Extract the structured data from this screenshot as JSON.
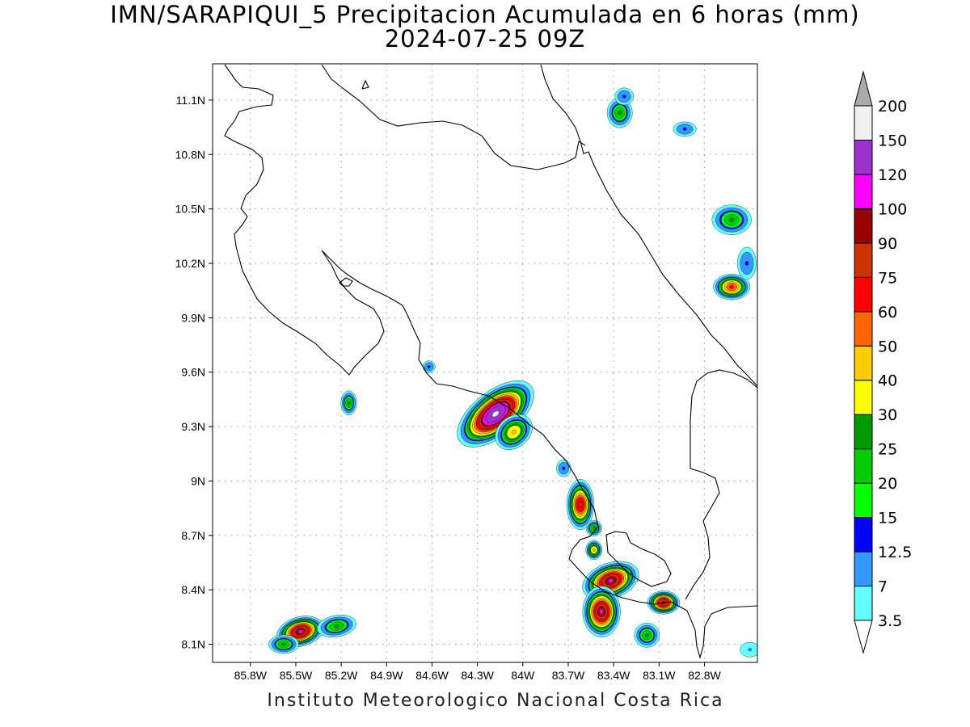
{
  "title": "IMN/SARAPIQUI_5 Precipitacion Acumulada en 6 horas (mm)",
  "subtitle": "2024-07-25 09Z",
  "footer": "Instituto Meteorologico Nacional Costa Rica",
  "map": {
    "lon_range": [
      -86.05,
      -82.45
    ],
    "lat_range": [
      8.0,
      11.3
    ],
    "grid": true,
    "lat_ticks": [
      {
        "value": 8.1,
        "label": "8.1N"
      },
      {
        "value": 8.4,
        "label": "8.4N"
      },
      {
        "value": 8.7,
        "label": "8.7N"
      },
      {
        "value": 9.0,
        "label": "9N"
      },
      {
        "value": 9.3,
        "label": "9.3N"
      },
      {
        "value": 9.6,
        "label": "9.6N"
      },
      {
        "value": 9.9,
        "label": "9.9N"
      },
      {
        "value": 10.2,
        "label": "10.2N"
      },
      {
        "value": 10.5,
        "label": "10.5N"
      },
      {
        "value": 10.8,
        "label": "10.8N"
      },
      {
        "value": 11.1,
        "label": "11.1N"
      }
    ],
    "lon_ticks": [
      {
        "value": -85.8,
        "label": "85.8W"
      },
      {
        "value": -85.5,
        "label": "85.5W"
      },
      {
        "value": -85.2,
        "label": "85.2W"
      },
      {
        "value": -84.9,
        "label": "84.9W"
      },
      {
        "value": -84.6,
        "label": "84.6W"
      },
      {
        "value": -84.3,
        "label": "84.3W"
      },
      {
        "value": -84.0,
        "label": "84W"
      },
      {
        "value": -83.7,
        "label": "83.7W"
      },
      {
        "value": -83.4,
        "label": "83.4W"
      },
      {
        "value": -83.1,
        "label": "83.1W"
      },
      {
        "value": -82.8,
        "label": "82.8W"
      }
    ]
  },
  "colorbar": {
    "levels": [
      {
        "label": "3.5",
        "color": "#66ffff"
      },
      {
        "label": "7",
        "color": "#3399ff"
      },
      {
        "label": "12.5",
        "color": "#0000ff"
      },
      {
        "label": "15",
        "color": "#00ff00"
      },
      {
        "label": "20",
        "color": "#00cc00"
      },
      {
        "label": "25",
        "color": "#009900"
      },
      {
        "label": "30",
        "color": "#ffff00"
      },
      {
        "label": "40",
        "color": "#ffcc00"
      },
      {
        "label": "50",
        "color": "#ff6600"
      },
      {
        "label": "60",
        "color": "#ff0000"
      },
      {
        "label": "75",
        "color": "#cc3300"
      },
      {
        "label": "90",
        "color": "#990000"
      },
      {
        "label": "100",
        "color": "#ff00ff"
      },
      {
        "label": "120",
        "color": "#9933cc"
      },
      {
        "label": "150",
        "color": "#f0f0f0"
      },
      {
        "label": "200",
        "color": "#aaaaaa"
      }
    ]
  },
  "precip_cells": [
    {
      "lon": -84.18,
      "lat": 9.37,
      "peak_mm": 150,
      "sx": 0.17,
      "sy": 0.07,
      "rot": -38
    },
    {
      "lon": -84.06,
      "lat": 9.27,
      "peak_mm": 40,
      "sx": 0.08,
      "sy": 0.05,
      "rot": -40
    },
    {
      "lon": -83.62,
      "lat": 8.87,
      "peak_mm": 75,
      "sx": 0.05,
      "sy": 0.08,
      "rot": 0
    },
    {
      "lon": -83.42,
      "lat": 8.45,
      "peak_mm": 100,
      "sx": 0.11,
      "sy": 0.055,
      "rot": -20
    },
    {
      "lon": -83.48,
      "lat": 8.28,
      "peak_mm": 100,
      "sx": 0.07,
      "sy": 0.08,
      "rot": 0
    },
    {
      "lon": -83.07,
      "lat": 8.33,
      "peak_mm": 90,
      "sx": 0.06,
      "sy": 0.035,
      "rot": 0
    },
    {
      "lon": -83.18,
      "lat": 8.15,
      "peak_mm": 25,
      "sx": 0.05,
      "sy": 0.04,
      "rot": 0
    },
    {
      "lon": -83.53,
      "lat": 8.74,
      "peak_mm": 25,
      "sx": 0.03,
      "sy": 0.025,
      "rot": 0
    },
    {
      "lon": -83.53,
      "lat": 8.62,
      "peak_mm": 40,
      "sx": 0.03,
      "sy": 0.03,
      "rot": 0
    },
    {
      "lon": -85.47,
      "lat": 8.17,
      "peak_mm": 100,
      "sx": 0.09,
      "sy": 0.045,
      "rot": -15
    },
    {
      "lon": -85.23,
      "lat": 8.2,
      "peak_mm": 25,
      "sx": 0.08,
      "sy": 0.035,
      "rot": -10
    },
    {
      "lon": -85.58,
      "lat": 8.1,
      "peak_mm": 25,
      "sx": 0.06,
      "sy": 0.03,
      "rot": 0
    },
    {
      "lon": -85.15,
      "lat": 9.43,
      "peak_mm": 25,
      "sx": 0.03,
      "sy": 0.04,
      "rot": 0
    },
    {
      "lon": -83.36,
      "lat": 11.03,
      "peak_mm": 25,
      "sx": 0.05,
      "sy": 0.05,
      "rot": 0
    },
    {
      "lon": -83.33,
      "lat": 11.12,
      "peak_mm": 12.5,
      "sx": 0.04,
      "sy": 0.03,
      "rot": 0
    },
    {
      "lon": -82.62,
      "lat": 10.07,
      "peak_mm": 60,
      "sx": 0.07,
      "sy": 0.04,
      "rot": 0
    },
    {
      "lon": -82.62,
      "lat": 10.44,
      "peak_mm": 25,
      "sx": 0.08,
      "sy": 0.05,
      "rot": 0
    },
    {
      "lon": -82.52,
      "lat": 10.2,
      "peak_mm": 12.5,
      "sx": 0.04,
      "sy": 0.06,
      "rot": 0
    },
    {
      "lon": -82.93,
      "lat": 10.94,
      "peak_mm": 12.5,
      "sx": 0.05,
      "sy": 0.025,
      "rot": 0
    },
    {
      "lon": -84.62,
      "lat": 9.63,
      "peak_mm": 12.5,
      "sx": 0.025,
      "sy": 0.02,
      "rot": 0
    },
    {
      "lon": -83.73,
      "lat": 9.07,
      "peak_mm": 12.5,
      "sx": 0.03,
      "sy": 0.03,
      "rot": 0
    },
    {
      "lon": -82.5,
      "lat": 8.07,
      "peak_mm": 7,
      "sx": 0.05,
      "sy": 0.03,
      "rot": 0
    }
  ]
}
